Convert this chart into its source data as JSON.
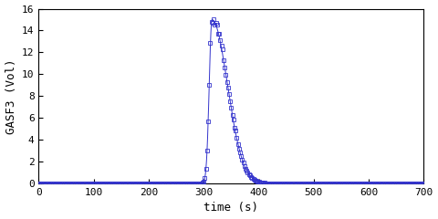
{
  "title": "",
  "xlabel": "time (s)",
  "ylabel": "GASF3 (Vol)",
  "xlim": [
    0,
    700
  ],
  "ylim": [
    0,
    16
  ],
  "xticks": [
    0,
    100,
    200,
    300,
    400,
    500,
    600,
    700
  ],
  "yticks": [
    0,
    2,
    4,
    6,
    8,
    10,
    12,
    14,
    16
  ],
  "line_color": "#3333cc",
  "marker": "s",
  "markersize": 2.5,
  "linewidth": 0.7,
  "bg_color": "#ffffff",
  "peak_time": 315,
  "peak_value": 15.0,
  "rise_sigma": 5,
  "fall_sigma": 28
}
